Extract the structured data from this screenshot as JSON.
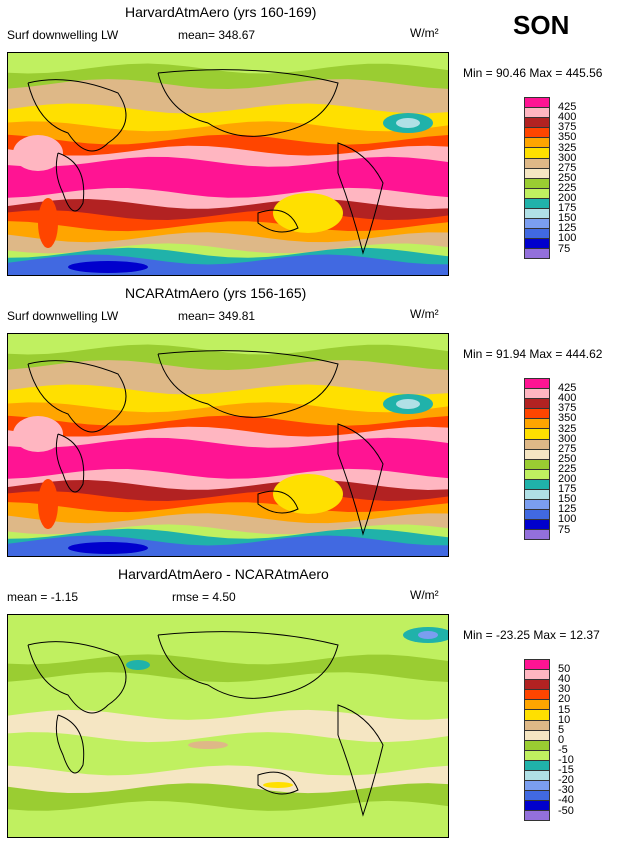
{
  "season": "SON",
  "panels": [
    {
      "title": "HarvardAtmAero (yrs 160-169)",
      "variable": "Surf downwelling LW",
      "mean_label": "mean= 348.67",
      "units": "W/m²",
      "minmax": "Min =  90.46 Max = 445.56",
      "levels": [
        "425",
        "400",
        "375",
        "350",
        "325",
        "300",
        "275",
        "250",
        "225",
        "200",
        "175",
        "150",
        "125",
        "100",
        "75"
      ]
    },
    {
      "title": "NCARAtmAero (yrs 156-165)",
      "variable": "Surf downwelling LW",
      "mean_label": "mean= 349.81",
      "units": "W/m²",
      "minmax": "Min =  91.94 Max = 444.62",
      "levels": [
        "425",
        "400",
        "375",
        "350",
        "325",
        "300",
        "275",
        "250",
        "225",
        "200",
        "175",
        "150",
        "125",
        "100",
        "75"
      ]
    },
    {
      "title": "HarvardAtmAero - NCARAtmAero",
      "variable": "mean =  -1.15",
      "mean_label": "rmse =   4.50",
      "units": "W/m²",
      "minmax": "Min = -23.25 Max =  12.37",
      "levels": [
        "50",
        "40",
        "30",
        "20",
        "15",
        "10",
        "5",
        "0",
        "-5",
        "-10",
        "-15",
        "-20",
        "-30",
        "-40",
        "-50"
      ]
    }
  ],
  "colorbar": [
    "#ff1493",
    "#ffb6c1",
    "#b22222",
    "#ff4500",
    "#ffa500",
    "#ffe000",
    "#deb887",
    "#f5e6c3",
    "#9acd32",
    "#c0f060",
    "#20b2aa",
    "#b0e0e6",
    "#7b9ef0",
    "#4169e1",
    "#0000cd",
    "#9370db"
  ]
}
